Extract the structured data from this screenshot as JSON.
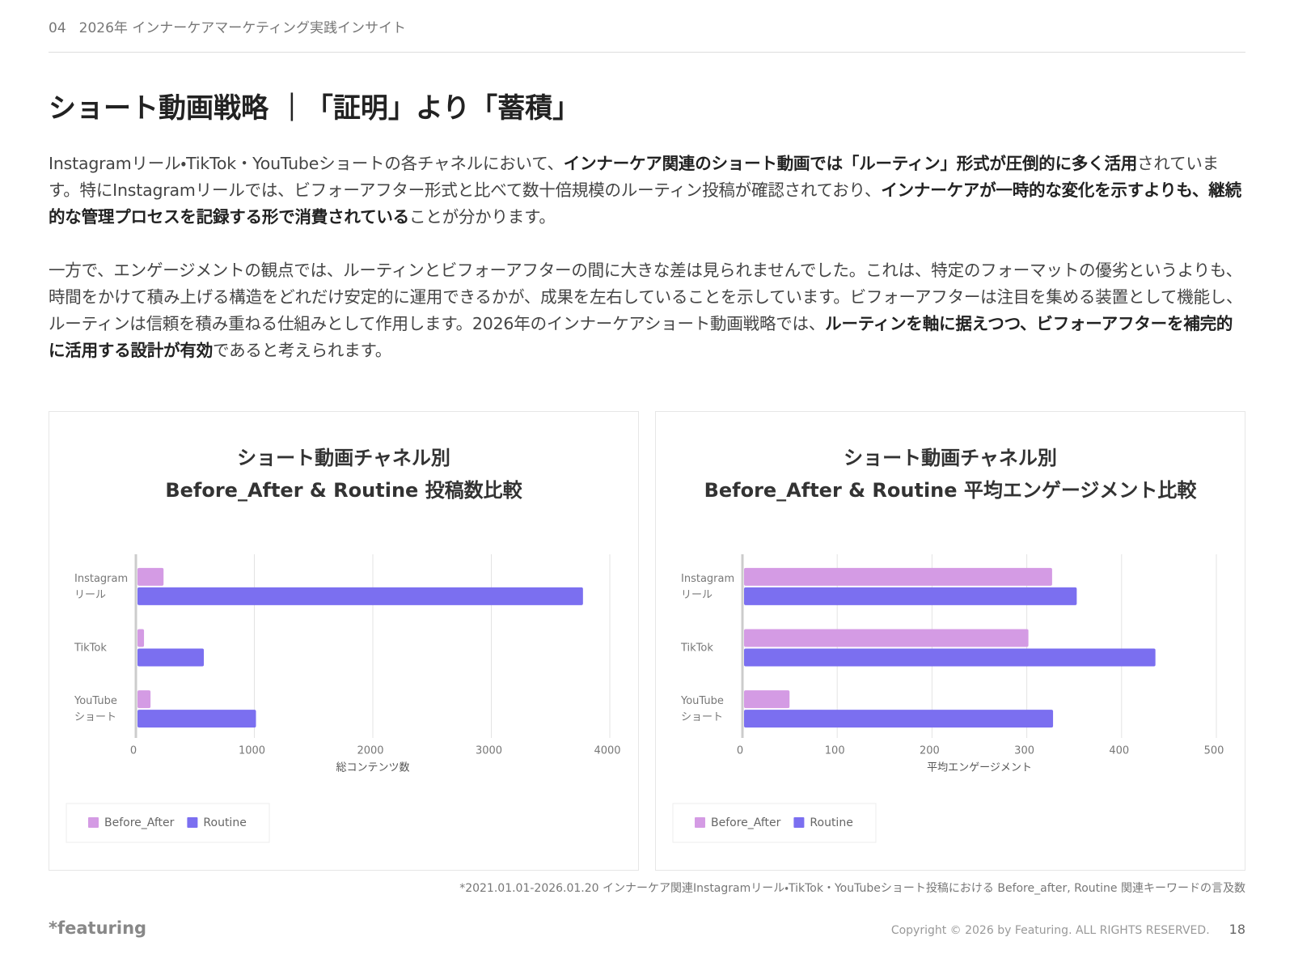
{
  "header": {
    "section": "04",
    "title": "2026年 インナーケアマーケティング実践インサイト"
  },
  "title": "ショート動画戦略 ｜「証明」より「蓄積」",
  "paragraphs": [
    {
      "segments": [
        {
          "text": "Instagramリール・TikTok・YouTubeショートの各チャネルにおいて、",
          "bold": false
        },
        {
          "text": "インナーケア関連のショート動画では「ルーティン」形式が圧倒的に多く活用",
          "bold": true
        },
        {
          "text": "されています。特にInstagramリールでは、ビフォーアフター形式と比べて数十倍規模のルーティン投稿が確認されており、",
          "bold": false
        },
        {
          "text": "インナーケアが一時的な変化を示すよりも、継続的な管理プロセスを記録する形で消費されている",
          "bold": true
        },
        {
          "text": "ことが分かります。",
          "bold": false
        }
      ]
    },
    {
      "segments": [
        {
          "text": "一方で、エンゲージメントの観点では、ルーティンとビフォーアフターの間に大きな差は見られませんでした。これは、特定のフォーマットの優劣というよりも、時間をかけて積み上げる構造をどれだけ安定的に運用できるかが、成果を左右していることを示しています。ビフォーアフターは注目を集める装置として機能し、ルーティンは信頼を積み重ねる仕組みとして作用します。2026年のインナーケアショート動画戦略では、",
          "bold": false
        },
        {
          "text": "ルーティンを軸に据えつつ、ビフォーアフターを補完的に活用する設計が有効",
          "bold": true
        },
        {
          "text": "であると考えられます。",
          "bold": false
        }
      ]
    }
  ],
  "chart_data": [
    {
      "type": "bar",
      "orientation": "horizontal",
      "title_lines": [
        "ショート動画チャネル別",
        "Before_After & Routine 投稿数比較"
      ],
      "x_label": "総コンテンツ数",
      "categories": [
        "Instagram\nリール",
        "TikTok",
        "YouTube\nショート"
      ],
      "series": [
        {
          "name": "Before_After",
          "color": "#d49be4",
          "values": [
            220,
            55,
            110
          ]
        },
        {
          "name": "Routine",
          "color": "#7b6ff0",
          "values": [
            3760,
            560,
            1000
          ]
        }
      ],
      "xlim": [
        0,
        4000
      ],
      "xticks": [
        0,
        1000,
        2000,
        3000,
        4000
      ],
      "grid": true,
      "legend": "bottom-left"
    },
    {
      "type": "bar",
      "orientation": "horizontal",
      "title_lines": [
        "ショート動画チャネル別",
        "Before_After & Routine 平均エンゲージメント比較"
      ],
      "x_label": "平均エンゲージメント",
      "categories": [
        "Instagram\nリール",
        "TikTok",
        "YouTube\nショート"
      ],
      "series": [
        {
          "name": "Before_After",
          "color": "#d49be4",
          "values": [
            325,
            300,
            48
          ]
        },
        {
          "name": "Routine",
          "color": "#7b6ff0",
          "values": [
            351,
            434,
            326
          ]
        }
      ],
      "xlim": [
        0,
        500
      ],
      "xticks": [
        0,
        100,
        200,
        300,
        400,
        500
      ],
      "grid": true,
      "legend": "bottom-left"
    }
  ],
  "footnote": "*2021.01.01-2026.01.20 インナーケア関連Instagramリール・TikTok・YouTubeショート投稿における Before_after, Routine 関連キーワードの言及数",
  "footer": {
    "logo": "*featuring",
    "copyright": "Copyright © 2026 by Featuring. ALL RIGHTS RESERVED.",
    "page": "18"
  }
}
